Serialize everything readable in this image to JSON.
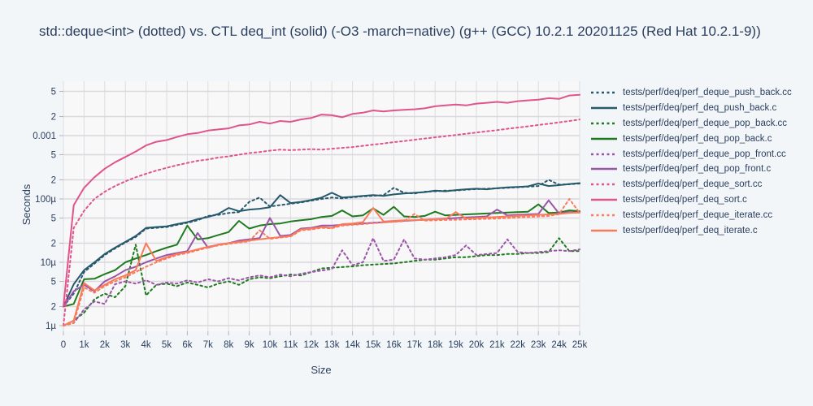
{
  "title": "std::deque<int> (dotted) vs. CTL deq_int (solid) (-O3 -march=native) (g++ (GCC) 10.2.1 20201125 (Red Hat 10.2.1-9))",
  "axes": {
    "x_title": "Size",
    "y_title": "Seconds",
    "x_ticks": [
      {
        "value": 0,
        "label": "0"
      },
      {
        "value": 1000,
        "label": "1k"
      },
      {
        "value": 2000,
        "label": "2k"
      },
      {
        "value": 3000,
        "label": "3k"
      },
      {
        "value": 4000,
        "label": "4k"
      },
      {
        "value": 5000,
        "label": "5k"
      },
      {
        "value": 6000,
        "label": "6k"
      },
      {
        "value": 7000,
        "label": "7k"
      },
      {
        "value": 8000,
        "label": "8k"
      },
      {
        "value": 9000,
        "label": "9k"
      },
      {
        "value": 10000,
        "label": "10k"
      },
      {
        "value": 11000,
        "label": "11k"
      },
      {
        "value": 12000,
        "label": "12k"
      },
      {
        "value": 13000,
        "label": "13k"
      },
      {
        "value": 14000,
        "label": "14k"
      },
      {
        "value": 15000,
        "label": "15k"
      },
      {
        "value": 16000,
        "label": "16k"
      },
      {
        "value": 17000,
        "label": "17k"
      },
      {
        "value": 18000,
        "label": "18k"
      },
      {
        "value": 19000,
        "label": "19k"
      },
      {
        "value": 20000,
        "label": "20k"
      },
      {
        "value": 21000,
        "label": "21k"
      },
      {
        "value": 22000,
        "label": "22k"
      },
      {
        "value": 23000,
        "label": "23k"
      },
      {
        "value": 24000,
        "label": "24k"
      },
      {
        "value": 25000,
        "label": "25k"
      }
    ],
    "y_ticks": [
      {
        "value": 1e-06,
        "label": "1µ"
      },
      {
        "value": 2e-06,
        "label": "2"
      },
      {
        "value": 5e-06,
        "label": "5"
      },
      {
        "value": 1e-05,
        "label": "10µ"
      },
      {
        "value": 2e-05,
        "label": "2"
      },
      {
        "value": 5e-05,
        "label": "5"
      },
      {
        "value": 0.0001,
        "label": "100µ"
      },
      {
        "value": 0.0002,
        "label": "2"
      },
      {
        "value": 0.0005,
        "label": "5"
      },
      {
        "value": 0.001,
        "label": "0.001"
      },
      {
        "value": 0.002,
        "label": "2"
      },
      {
        "value": 0.005,
        "label": "5"
      }
    ]
  },
  "style": {
    "paper_bg": "#f3f6f9",
    "plot_bg": "#f8f8f8",
    "grid_color_v": "#dddde2",
    "grid_color_h": "#d8d8de",
    "tick_color": "#b0b4bc",
    "text_color": "#2a3f5f"
  },
  "chart_data": {
    "type": "line",
    "title": "std::deque<int> (dotted) vs. CTL deq_int (solid) (-O3 -march=native) (g++ (GCC) 10.2.1 20201125 (Red Hat 10.2.1-9))",
    "xlabel": "Size",
    "ylabel": "Seconds",
    "x_range": [
      0,
      25000
    ],
    "y_scale": "log",
    "y_range": [
      1e-06,
      0.0072
    ],
    "grid": true,
    "legend_position": "right",
    "x": [
      0,
      500,
      1000,
      1500,
      2000,
      2500,
      3000,
      3500,
      4000,
      4500,
      5000,
      5500,
      6000,
      6500,
      7000,
      7500,
      8000,
      8500,
      9000,
      9500,
      10000,
      10500,
      11000,
      11500,
      12000,
      12500,
      13000,
      13500,
      14000,
      14500,
      15000,
      15500,
      16000,
      16500,
      17000,
      17500,
      18000,
      18500,
      19000,
      19500,
      20000,
      20500,
      21000,
      21500,
      22000,
      22500,
      23000,
      23500,
      24000,
      24500,
      25000
    ],
    "series": [
      {
        "name": "tests/perf/deq/perf_deque_push_back.cc",
        "color": "#27596d",
        "dash": "dot",
        "values": [
          2e-06,
          3.2e-06,
          7e-06,
          9.5e-06,
          1.3e-05,
          1.65e-05,
          2.05e-05,
          2.5e-05,
          3.4e-05,
          3.5e-05,
          3.6e-05,
          3.9e-05,
          4.2e-05,
          4.6e-05,
          5.4e-05,
          5.6e-05,
          6e-05,
          6.2e-05,
          9e-05,
          0.000105,
          7.6e-05,
          8e-05,
          8.4e-05,
          8.8e-05,
          9.4e-05,
          0.0001,
          0.000105,
          0.000102,
          0.000106,
          0.00011,
          0.000112,
          0.000115,
          0.00015,
          0.000125,
          0.000122,
          0.00013,
          0.000132,
          0.000135,
          0.000136,
          0.00014,
          0.000143,
          0.000145,
          0.000147,
          0.00015,
          0.000153,
          0.000156,
          0.00016,
          0.0002,
          0.000168,
          0.00017,
          0.000175
        ]
      },
      {
        "name": "tests/perf/deq/perf_deq_push_back.c",
        "color": "#27596d",
        "dash": "solid",
        "values": [
          2e-06,
          4.5e-06,
          7.5e-06,
          1e-05,
          1.35e-05,
          1.7e-05,
          2.1e-05,
          2.6e-05,
          3.5e-05,
          3.6e-05,
          3.7e-05,
          4e-05,
          4.3e-05,
          4.8e-05,
          5.2e-05,
          5.8e-05,
          7.2e-05,
          6.4e-05,
          6.8e-05,
          7e-05,
          7.4e-05,
          0.000115,
          8.6e-05,
          9e-05,
          9.6e-05,
          0.000105,
          0.000125,
          0.000105,
          0.000108,
          0.000112,
          0.000115,
          0.000112,
          0.000118,
          0.000122,
          0.000125,
          0.000128,
          0.000135,
          0.000132,
          0.000138,
          0.000142,
          0.000145,
          0.000142,
          0.000148,
          0.000152,
          0.000155,
          0.000158,
          0.000175,
          0.00016,
          0.000165,
          0.000172,
          0.000178
        ]
      },
      {
        "name": "tests/perf/deq/perf_deque_pop_back.cc",
        "color": "#1f7a1f",
        "dash": "dot",
        "values": [
          1e-06,
          1.2e-06,
          1.6e-06,
          2.6e-06,
          3.2e-06,
          2.8e-06,
          4.2e-06,
          1.9e-05,
          3e-06,
          4.4e-06,
          4.6e-06,
          4.2e-06,
          4.8e-06,
          4.4e-06,
          4e-06,
          4.6e-06,
          5e-06,
          4.4e-06,
          5.4e-06,
          5.8e-06,
          5.6e-06,
          6e-06,
          6.4e-06,
          6.2e-06,
          7e-06,
          8e-06,
          8.2e-06,
          8.4e-06,
          8.6e-06,
          9e-06,
          9.2e-06,
          9.4e-06,
          9.6e-06,
          1e-05,
          1.05e-05,
          1.1e-05,
          1.1e-05,
          1.15e-05,
          1.2e-05,
          1.2e-05,
          1.25e-05,
          1.3e-05,
          1.3e-05,
          1.35e-05,
          1.35e-05,
          1.4e-05,
          1.4e-05,
          1.45e-05,
          2.4e-05,
          1.5e-05,
          1.5e-05
        ]
      },
      {
        "name": "tests/perf/deq/perf_deq_pop_back.c",
        "color": "#1f7a1f",
        "dash": "solid",
        "values": [
          2e-06,
          2.2e-06,
          5.4e-06,
          5.5e-06,
          6.5e-06,
          7.5e-06,
          1e-05,
          1.15e-05,
          1.3e-05,
          1.5e-05,
          1.7e-05,
          1.9e-05,
          3.8e-05,
          2.3e-05,
          2.4e-05,
          2.7e-05,
          3e-05,
          4.5e-05,
          3.4e-05,
          3.8e-05,
          4e-05,
          4.1e-05,
          4.4e-05,
          4.6e-05,
          4.8e-05,
          5.2e-05,
          5.4e-05,
          6.6e-05,
          5.3e-05,
          5.5e-05,
          7.1e-05,
          5.6e-05,
          7.5e-05,
          5.3e-05,
          5.2e-05,
          5.4e-05,
          6.3e-05,
          5.5e-05,
          5.6e-05,
          5.7e-05,
          5.8e-05,
          5.9e-05,
          6e-05,
          6.1e-05,
          6.2e-05,
          6.3e-05,
          8.2e-05,
          6e-05,
          6.1e-05,
          6.6e-05,
          6.4e-05
        ]
      },
      {
        "name": "tests/perf/deq/perf_deque_pop_front.cc",
        "color": "#9a55a8",
        "dash": "dot",
        "values": [
          1e-06,
          1.1e-06,
          1.8e-06,
          2.4e-06,
          2.2e-06,
          4.5e-06,
          5e-06,
          4.6e-06,
          5.2e-06,
          4.4e-06,
          4.8e-06,
          4.6e-06,
          5.2e-06,
          4.8e-06,
          5.4e-06,
          5e-06,
          5.6e-06,
          5.2e-06,
          5.8e-06,
          6.2e-06,
          5.8e-06,
          6.4e-06,
          6e-06,
          6.6e-06,
          7e-06,
          7.4e-06,
          7.8e-06,
          1.55e-05,
          9e-06,
          1e-05,
          2.4e-05,
          1.05e-05,
          1.1e-05,
          2.3e-05,
          1.15e-05,
          1.1e-05,
          1.15e-05,
          1.2e-05,
          1.3e-05,
          1.85e-05,
          1.3e-05,
          1.35e-05,
          1.4e-05,
          2.3e-05,
          1.45e-05,
          1.4e-05,
          1.45e-05,
          1.5e-05,
          1.55e-05,
          1.5e-05,
          1.6e-05
        ]
      },
      {
        "name": "tests/perf/deq/perf_deq_pop_front.c",
        "color": "#9a55a8",
        "dash": "solid",
        "values": [
          2e-06,
          3.5e-06,
          4.4e-06,
          3.5e-06,
          5e-06,
          6e-06,
          7.5e-06,
          8.5e-06,
          1e-05,
          1.15e-05,
          1.3e-05,
          1.4e-05,
          1.5e-05,
          2.9e-05,
          1.7e-05,
          1.9e-05,
          2e-05,
          2.2e-05,
          2.3e-05,
          2.4e-05,
          5e-05,
          2.6e-05,
          2.7e-05,
          3.4e-05,
          3.5e-05,
          3.8e-05,
          3.8e-05,
          3.9e-05,
          4e-05,
          4.1e-05,
          4.2e-05,
          4.3e-05,
          4.4e-05,
          4.5e-05,
          4.6e-05,
          4.7e-05,
          4.8e-05,
          4.9e-05,
          5e-05,
          5.1e-05,
          5.2e-05,
          5.3e-05,
          6.8e-05,
          5.5e-05,
          5.6e-05,
          5.7e-05,
          5.8e-05,
          9.5e-05,
          5.9e-05,
          6.2e-05,
          6.1e-05
        ]
      },
      {
        "name": "tests/perf/deq/perf_deque_sort.cc",
        "color": "#e0548c",
        "dash": "dot",
        "values": [
          1e-06,
          3.5e-05,
          6.5e-05,
          0.0001,
          0.00013,
          0.00016,
          0.00019,
          0.00022,
          0.00025,
          0.00028,
          0.00031,
          0.00034,
          0.00037,
          0.0004,
          0.00042,
          0.00045,
          0.00047,
          0.0005,
          0.00053,
          0.00055,
          0.00058,
          0.0006,
          0.00059,
          0.0006,
          0.00061,
          0.0006,
          0.00062,
          0.00064,
          0.00066,
          0.00069,
          0.00072,
          0.00075,
          0.00079,
          0.00082,
          0.00086,
          0.0009,
          0.00094,
          0.00098,
          0.00102,
          0.00107,
          0.00112,
          0.00117,
          0.00122,
          0.00128,
          0.00134,
          0.0014,
          0.00147,
          0.00154,
          0.00162,
          0.0017,
          0.0018
        ]
      },
      {
        "name": "tests/perf/deq/perf_deq_sort.c",
        "color": "#e0548c",
        "dash": "solid",
        "values": [
          2e-06,
          8e-05,
          0.00015,
          0.00022,
          0.0003,
          0.00038,
          0.00046,
          0.00056,
          0.0007,
          0.0008,
          0.00085,
          0.00095,
          0.00105,
          0.0011,
          0.0012,
          0.00125,
          0.0013,
          0.00145,
          0.0015,
          0.00165,
          0.00155,
          0.0017,
          0.00165,
          0.0018,
          0.0019,
          0.00215,
          0.0021,
          0.00195,
          0.0022,
          0.0023,
          0.0025,
          0.0024,
          0.0025,
          0.00255,
          0.0026,
          0.0027,
          0.0029,
          0.003,
          0.0031,
          0.003,
          0.0032,
          0.0033,
          0.0034,
          0.0033,
          0.0035,
          0.0036,
          0.0037,
          0.0039,
          0.0038,
          0.0043,
          0.0044
        ]
      },
      {
        "name": "tests/perf/deq/perf_deque_iterate.cc",
        "color": "#fa7a5a",
        "dash": "dot",
        "values": [
          1e-06,
          1.1e-06,
          4e-06,
          3.3e-06,
          4.2e-06,
          5e-06,
          5.8e-06,
          7e-06,
          8.5e-06,
          1e-05,
          1.15e-05,
          1.3e-05,
          1.4e-05,
          1.55e-05,
          1.7e-05,
          1.85e-05,
          1.95e-05,
          2.05e-05,
          2.15e-05,
          3.2e-05,
          2.35e-05,
          2.45e-05,
          2.55e-05,
          3.2e-05,
          3.3e-05,
          3.5e-05,
          3.45e-05,
          3.8e-05,
          3.9e-05,
          4e-05,
          4.15e-05,
          4.25e-05,
          4.35e-05,
          4.45e-05,
          5.8e-05,
          4.55e-05,
          4.6e-05,
          4.65e-05,
          4.7e-05,
          4.75e-05,
          4.8e-05,
          4.85e-05,
          4.9e-05,
          5e-05,
          5.1e-05,
          5.2e-05,
          5.3e-05,
          5.4e-05,
          5.75e-05,
          0.0001,
          6e-05
        ]
      },
      {
        "name": "tests/perf/deq/perf_deq_iterate.c",
        "color": "#fa7a5a",
        "dash": "solid",
        "values": [
          1e-06,
          1.2e-06,
          4.7e-06,
          3.6e-06,
          4.4e-06,
          5.4e-06,
          6.2e-06,
          7.5e-06,
          2e-05,
          1.05e-05,
          1.2e-05,
          1.35e-05,
          1.45e-05,
          1.6e-05,
          1.75e-05,
          1.9e-05,
          2e-05,
          2.1e-05,
          2.2e-05,
          2.3e-05,
          2.4e-05,
          2.5e-05,
          2.6e-05,
          3.3e-05,
          3.4e-05,
          3.6e-05,
          3.5e-05,
          4e-05,
          4.1e-05,
          4.3e-05,
          7.2e-05,
          4.4e-05,
          4.5e-05,
          4.6e-05,
          4.6e-05,
          4.7e-05,
          4.8e-05,
          4.8e-05,
          6.2e-05,
          4.9e-05,
          5e-05,
          5.1e-05,
          5.2e-05,
          5.3e-05,
          5.4e-05,
          5.5e-05,
          5.6e-05,
          5.7e-05,
          5.8e-05,
          6e-05,
          6.1e-05
        ]
      }
    ]
  }
}
